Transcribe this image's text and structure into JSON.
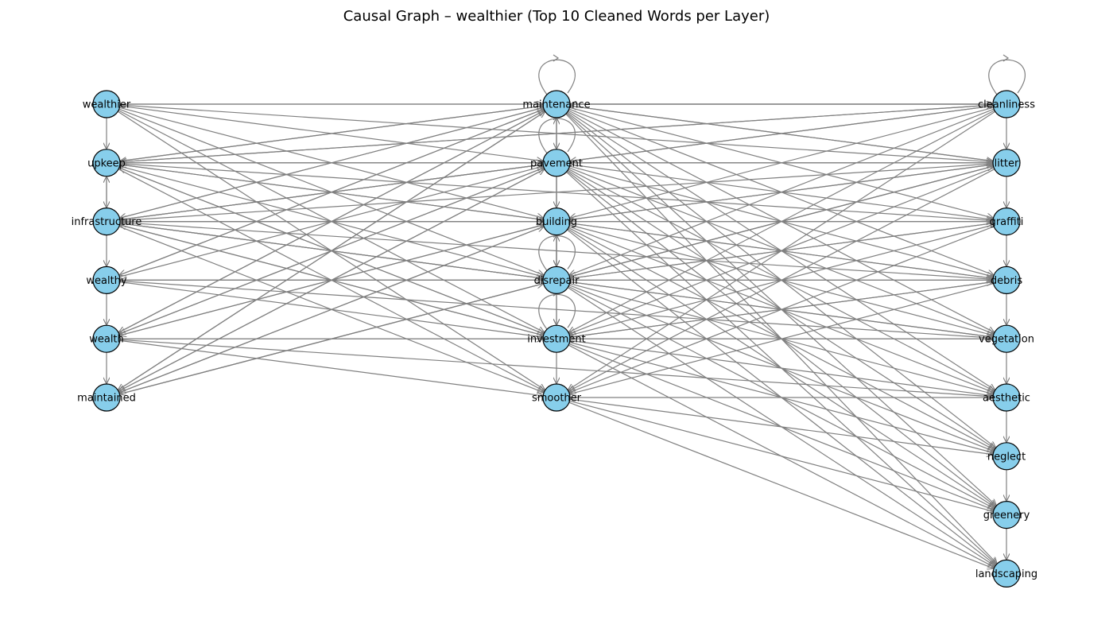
{
  "title": "Causal Graph – wealthier (Top 10 Cleaned Words per Layer)",
  "colors": {
    "node_fill": "#87ceeb",
    "node_stroke": "#000000",
    "edge": "#808080",
    "background": "#ffffff"
  },
  "layers": [
    [
      "wealthier",
      "upkeep",
      "infrastructure",
      "wealthy",
      "wealth",
      "maintained"
    ],
    [
      "maintenance",
      "pavement",
      "building",
      "disrepair",
      "investment",
      "smoother"
    ],
    [
      "cleanliness",
      "litter",
      "graffiti",
      "debris",
      "vegetation",
      "aesthetic",
      "neglect",
      "greenery",
      "landscaping"
    ]
  ],
  "self_loops": [
    "maintenance",
    "pavement",
    "disrepair",
    "investment",
    "cleanliness"
  ],
  "edges": [
    [
      "wealthier",
      "upkeep"
    ],
    [
      "upkeep",
      "infrastructure"
    ],
    [
      "infrastructure",
      "upkeep"
    ],
    [
      "infrastructure",
      "wealthy"
    ],
    [
      "wealthy",
      "wealth"
    ],
    [
      "wealth",
      "maintained"
    ],
    [
      "maintenance",
      "pavement"
    ],
    [
      "pavement",
      "building"
    ],
    [
      "building",
      "disrepair"
    ],
    [
      "disrepair",
      "building"
    ],
    [
      "disrepair",
      "investment"
    ],
    [
      "investment",
      "smoother"
    ],
    [
      "pavement",
      "maintenance"
    ],
    [
      "maintenance",
      "disrepair"
    ],
    [
      "pavement",
      "investment"
    ],
    [
      "cleanliness",
      "litter"
    ],
    [
      "litter",
      "graffiti"
    ],
    [
      "graffiti",
      "debris"
    ],
    [
      "debris",
      "vegetation"
    ],
    [
      "vegetation",
      "aesthetic"
    ],
    [
      "aesthetic",
      "neglect"
    ],
    [
      "neglect",
      "greenery"
    ],
    [
      "greenery",
      "landscaping"
    ],
    [
      "wealthier",
      "maintenance"
    ],
    [
      "wealthier",
      "pavement"
    ],
    [
      "wealthier",
      "building"
    ],
    [
      "wealthier",
      "disrepair"
    ],
    [
      "wealthier",
      "investment"
    ],
    [
      "wealthier",
      "smoother"
    ],
    [
      "wealthier",
      "cleanliness"
    ],
    [
      "wealthier",
      "litter"
    ],
    [
      "upkeep",
      "maintenance"
    ],
    [
      "upkeep",
      "pavement"
    ],
    [
      "upkeep",
      "building"
    ],
    [
      "upkeep",
      "disrepair"
    ],
    [
      "upkeep",
      "investment"
    ],
    [
      "upkeep",
      "smoother"
    ],
    [
      "upkeep",
      "cleanliness"
    ],
    [
      "upkeep",
      "litter"
    ],
    [
      "upkeep",
      "graffiti"
    ],
    [
      "upkeep",
      "debris"
    ],
    [
      "infrastructure",
      "maintenance"
    ],
    [
      "infrastructure",
      "pavement"
    ],
    [
      "infrastructure",
      "building"
    ],
    [
      "infrastructure",
      "disrepair"
    ],
    [
      "infrastructure",
      "investment"
    ],
    [
      "infrastructure",
      "smoother"
    ],
    [
      "infrastructure",
      "litter"
    ],
    [
      "infrastructure",
      "graffiti"
    ],
    [
      "infrastructure",
      "debris"
    ],
    [
      "infrastructure",
      "vegetation"
    ],
    [
      "wealthy",
      "maintenance"
    ],
    [
      "wealthy",
      "pavement"
    ],
    [
      "wealthy",
      "disrepair"
    ],
    [
      "wealthy",
      "investment"
    ],
    [
      "wealthy",
      "debris"
    ],
    [
      "wealthy",
      "vegetation"
    ],
    [
      "wealth",
      "maintenance"
    ],
    [
      "wealth",
      "pavement"
    ],
    [
      "wealth",
      "building"
    ],
    [
      "wealth",
      "investment"
    ],
    [
      "wealth",
      "smoother"
    ],
    [
      "wealth",
      "vegetation"
    ],
    [
      "wealth",
      "aesthetic"
    ],
    [
      "maintained",
      "maintenance"
    ],
    [
      "maintained",
      "pavement"
    ],
    [
      "maintained",
      "building"
    ],
    [
      "maintained",
      "disrepair"
    ],
    [
      "maintained",
      "litter"
    ],
    [
      "maintenance",
      "cleanliness"
    ],
    [
      "maintenance",
      "litter"
    ],
    [
      "maintenance",
      "graffiti"
    ],
    [
      "maintenance",
      "debris"
    ],
    [
      "maintenance",
      "vegetation"
    ],
    [
      "maintenance",
      "aesthetic"
    ],
    [
      "maintenance",
      "neglect"
    ],
    [
      "maintenance",
      "greenery"
    ],
    [
      "maintenance",
      "landscaping"
    ],
    [
      "pavement",
      "litter"
    ],
    [
      "pavement",
      "graffiti"
    ],
    [
      "pavement",
      "debris"
    ],
    [
      "pavement",
      "vegetation"
    ],
    [
      "pavement",
      "aesthetic"
    ],
    [
      "pavement",
      "neglect"
    ],
    [
      "pavement",
      "greenery"
    ],
    [
      "pavement",
      "landscaping"
    ],
    [
      "building",
      "litter"
    ],
    [
      "building",
      "graffiti"
    ],
    [
      "building",
      "debris"
    ],
    [
      "building",
      "vegetation"
    ],
    [
      "building",
      "aesthetic"
    ],
    [
      "building",
      "neglect"
    ],
    [
      "building",
      "greenery"
    ],
    [
      "building",
      "landscaping"
    ],
    [
      "disrepair",
      "litter"
    ],
    [
      "disrepair",
      "graffiti"
    ],
    [
      "disrepair",
      "debris"
    ],
    [
      "disrepair",
      "vegetation"
    ],
    [
      "disrepair",
      "aesthetic"
    ],
    [
      "disrepair",
      "neglect"
    ],
    [
      "disrepair",
      "greenery"
    ],
    [
      "disrepair",
      "landscaping"
    ],
    [
      "investment",
      "debris"
    ],
    [
      "investment",
      "vegetation"
    ],
    [
      "investment",
      "aesthetic"
    ],
    [
      "investment",
      "neglect"
    ],
    [
      "investment",
      "greenery"
    ],
    [
      "investment",
      "landscaping"
    ],
    [
      "smoother",
      "aesthetic"
    ],
    [
      "smoother",
      "neglect"
    ],
    [
      "smoother",
      "greenery"
    ],
    [
      "smoother",
      "landscaping"
    ],
    [
      "cleanliness",
      "maintenance"
    ],
    [
      "cleanliness",
      "pavement"
    ],
    [
      "cleanliness",
      "building"
    ],
    [
      "cleanliness",
      "disrepair"
    ],
    [
      "cleanliness",
      "investment"
    ],
    [
      "cleanliness",
      "smoother"
    ],
    [
      "cleanliness",
      "upkeep"
    ],
    [
      "cleanliness",
      "infrastructure"
    ],
    [
      "litter",
      "maintenance"
    ],
    [
      "litter",
      "pavement"
    ],
    [
      "litter",
      "building"
    ],
    [
      "litter",
      "disrepair"
    ],
    [
      "litter",
      "investment"
    ],
    [
      "litter",
      "smoother"
    ],
    [
      "graffiti",
      "disrepair"
    ],
    [
      "graffiti",
      "investment"
    ],
    [
      "graffiti",
      "smoother"
    ],
    [
      "debris",
      "investment"
    ],
    [
      "debris",
      "smoother"
    ],
    [
      "maintenance",
      "upkeep"
    ],
    [
      "maintenance",
      "infrastructure"
    ],
    [
      "maintenance",
      "wealthy"
    ],
    [
      "maintenance",
      "wealth"
    ],
    [
      "maintenance",
      "maintained"
    ],
    [
      "pavement",
      "upkeep"
    ],
    [
      "pavement",
      "infrastructure"
    ],
    [
      "pavement",
      "wealth"
    ],
    [
      "pavement",
      "maintained"
    ],
    [
      "building",
      "infrastructure"
    ],
    [
      "building",
      "wealth"
    ],
    [
      "building",
      "maintained"
    ],
    [
      "disrepair",
      "infrastructure"
    ],
    [
      "disrepair",
      "wealthy"
    ],
    [
      "disrepair",
      "maintained"
    ],
    [
      "investment",
      "infrastructure"
    ],
    [
      "investment",
      "upkeep"
    ]
  ]
}
